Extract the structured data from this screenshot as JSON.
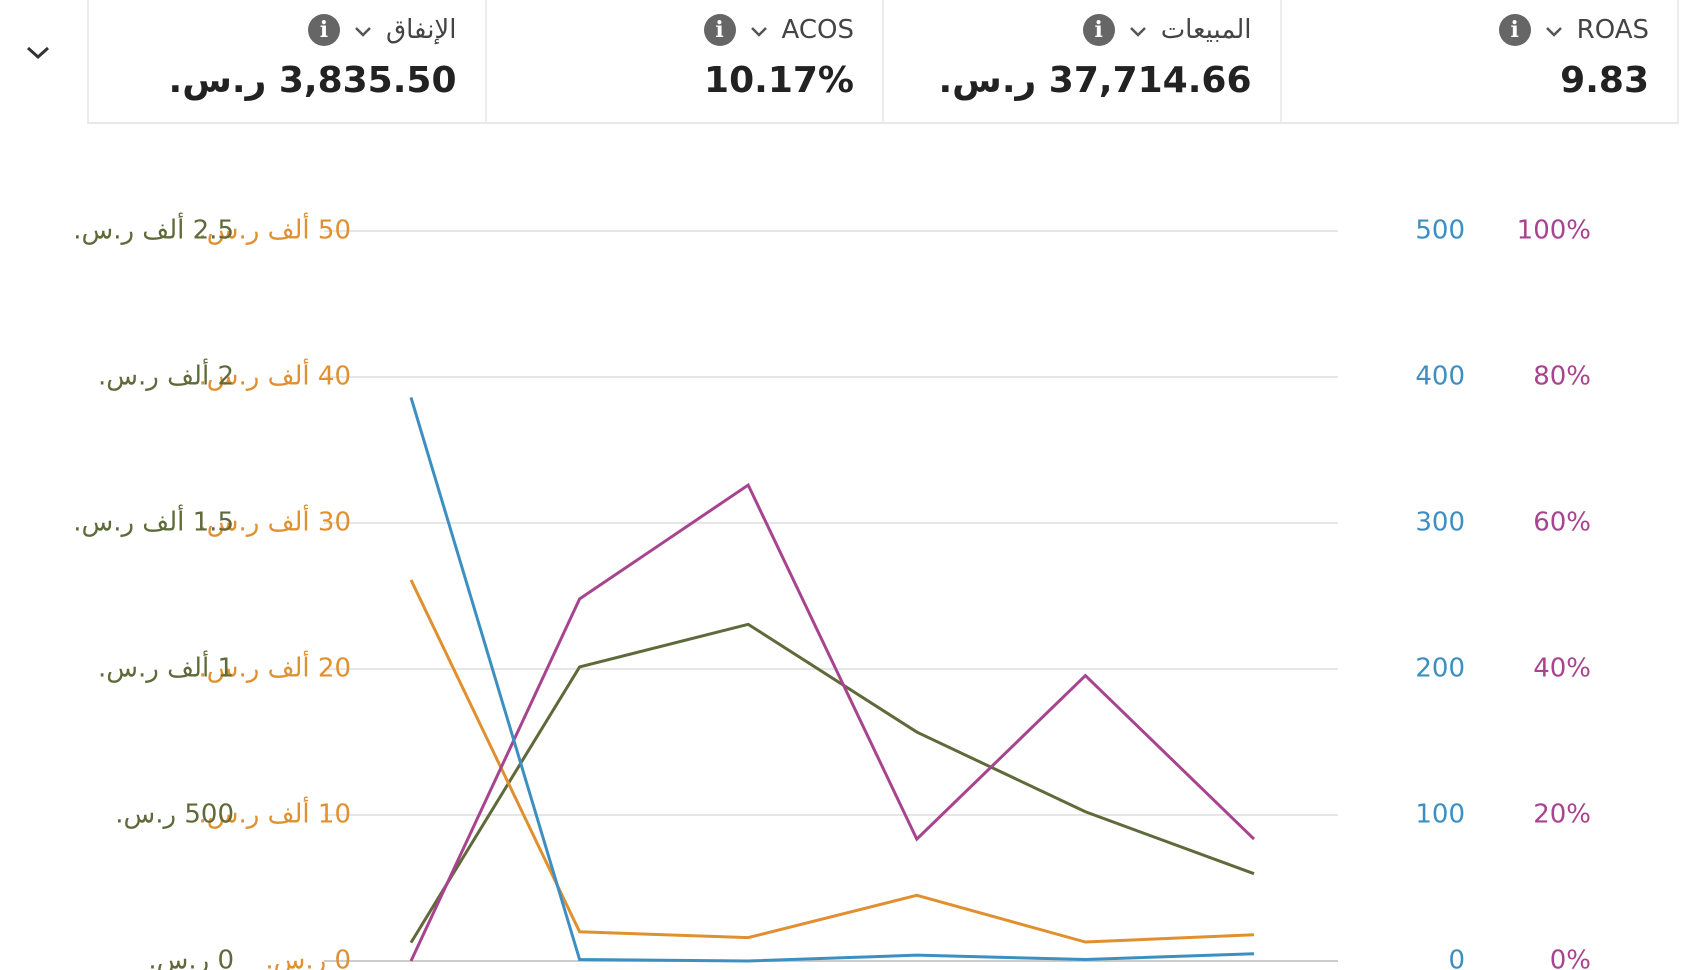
{
  "chart_data": {
    "type": "line",
    "grid": true,
    "categories": [
      null,
      null,
      null,
      null,
      null,
      null
    ],
    "series": [
      {
        "name": "ROAS",
        "total": "9.83",
        "color": "#3d8fc2",
        "values": [
          386,
          1,
          0,
          4,
          1,
          5
        ],
        "ylim": [
          0,
          500
        ],
        "yticks": [
          0,
          100,
          200,
          300,
          400,
          500
        ]
      },
      {
        "name": "المبيعات",
        "total": "37,714.66 ر.س.",
        "color": "#e0902e",
        "values": [
          26100,
          2000,
          1600,
          4500,
          1300,
          1800
        ],
        "ylim": [
          0,
          50000
        ],
        "yticks": [
          {
            "value": 0,
            "label": "0 ر.س."
          },
          {
            "value": 10000,
            "label": "10 ألف ر.س."
          },
          {
            "value": 20000,
            "label": "20 ألف ر.س."
          },
          {
            "value": 30000,
            "label": "30 ألف ر.س."
          },
          {
            "value": 40000,
            "label": "40 ألف ر.س."
          },
          {
            "value": 50000,
            "label": "50 ألف ر.س."
          }
        ]
      },
      {
        "name": "ACOS",
        "total": "10.17%",
        "color": "#a8448f",
        "values": [
          0,
          49.6,
          65.2,
          16.7,
          39.1,
          16.7
        ],
        "ylim": [
          0,
          100
        ],
        "yticks": [
          {
            "value": 0,
            "label": "0%"
          },
          {
            "value": 20,
            "label": "20%"
          },
          {
            "value": 40,
            "label": "40%"
          },
          {
            "value": 60,
            "label": "60%"
          },
          {
            "value": 80,
            "label": "80%"
          },
          {
            "value": 100,
            "label": "100%"
          }
        ]
      },
      {
        "name": "الإنفاق",
        "total": "3,835.50 ر.س.",
        "color": "#5e6a3a",
        "values": [
          63,
          1007,
          1153,
          784,
          511,
          299
        ],
        "ylim": [
          0,
          2500
        ],
        "yticks": [
          {
            "value": 0,
            "label": "0 ر.س."
          },
          {
            "value": 500,
            "label": "500 ر.س."
          },
          {
            "value": 1000,
            "label": "1 ألف ر.س."
          },
          {
            "value": 1500,
            "label": "1.5 ألف ر.س."
          },
          {
            "value": 2000,
            "label": "2 ألف ر.س."
          },
          {
            "value": 2500,
            "label": "2.5 ألف ر.س."
          }
        ]
      }
    ]
  }
}
